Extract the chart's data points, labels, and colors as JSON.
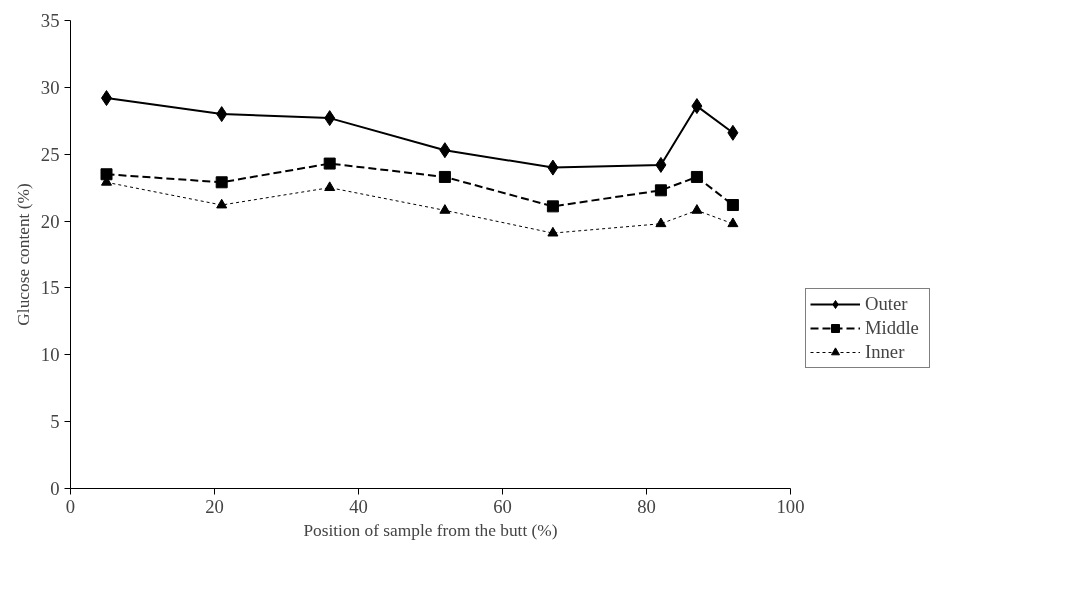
{
  "chart_data": {
    "type": "line",
    "xlabel": "Position of sample from the butt (%)",
    "ylabel": "Glucose content (%)",
    "x": [
      5,
      21,
      36,
      52,
      67,
      82,
      87,
      92
    ],
    "series": [
      {
        "name": "Outer",
        "color": "#000000",
        "values": [
          29.2,
          28.0,
          27.7,
          25.3,
          24.0,
          24.2,
          28.6,
          26.6
        ],
        "marker": "diamond",
        "line_style": "solid"
      },
      {
        "name": "Middle",
        "color": "#000000",
        "values": [
          23.5,
          22.9,
          24.3,
          23.3,
          21.1,
          22.3,
          23.3,
          21.2
        ],
        "marker": "square",
        "line_style": "dashed"
      },
      {
        "name": "Inner",
        "color": "#000000",
        "values": [
          22.9,
          21.2,
          22.5,
          20.8,
          19.1,
          19.8,
          20.8,
          19.8
        ],
        "marker": "triangle",
        "line_style": "dotted"
      }
    ],
    "xlim": [
      0,
      100
    ],
    "xticks": [
      0,
      20,
      40,
      60,
      80,
      100
    ],
    "ylim": [
      0,
      35
    ],
    "yticks": [
      0,
      5,
      10,
      15,
      20,
      25,
      30,
      35
    ],
    "grid": false,
    "legend": "right"
  }
}
